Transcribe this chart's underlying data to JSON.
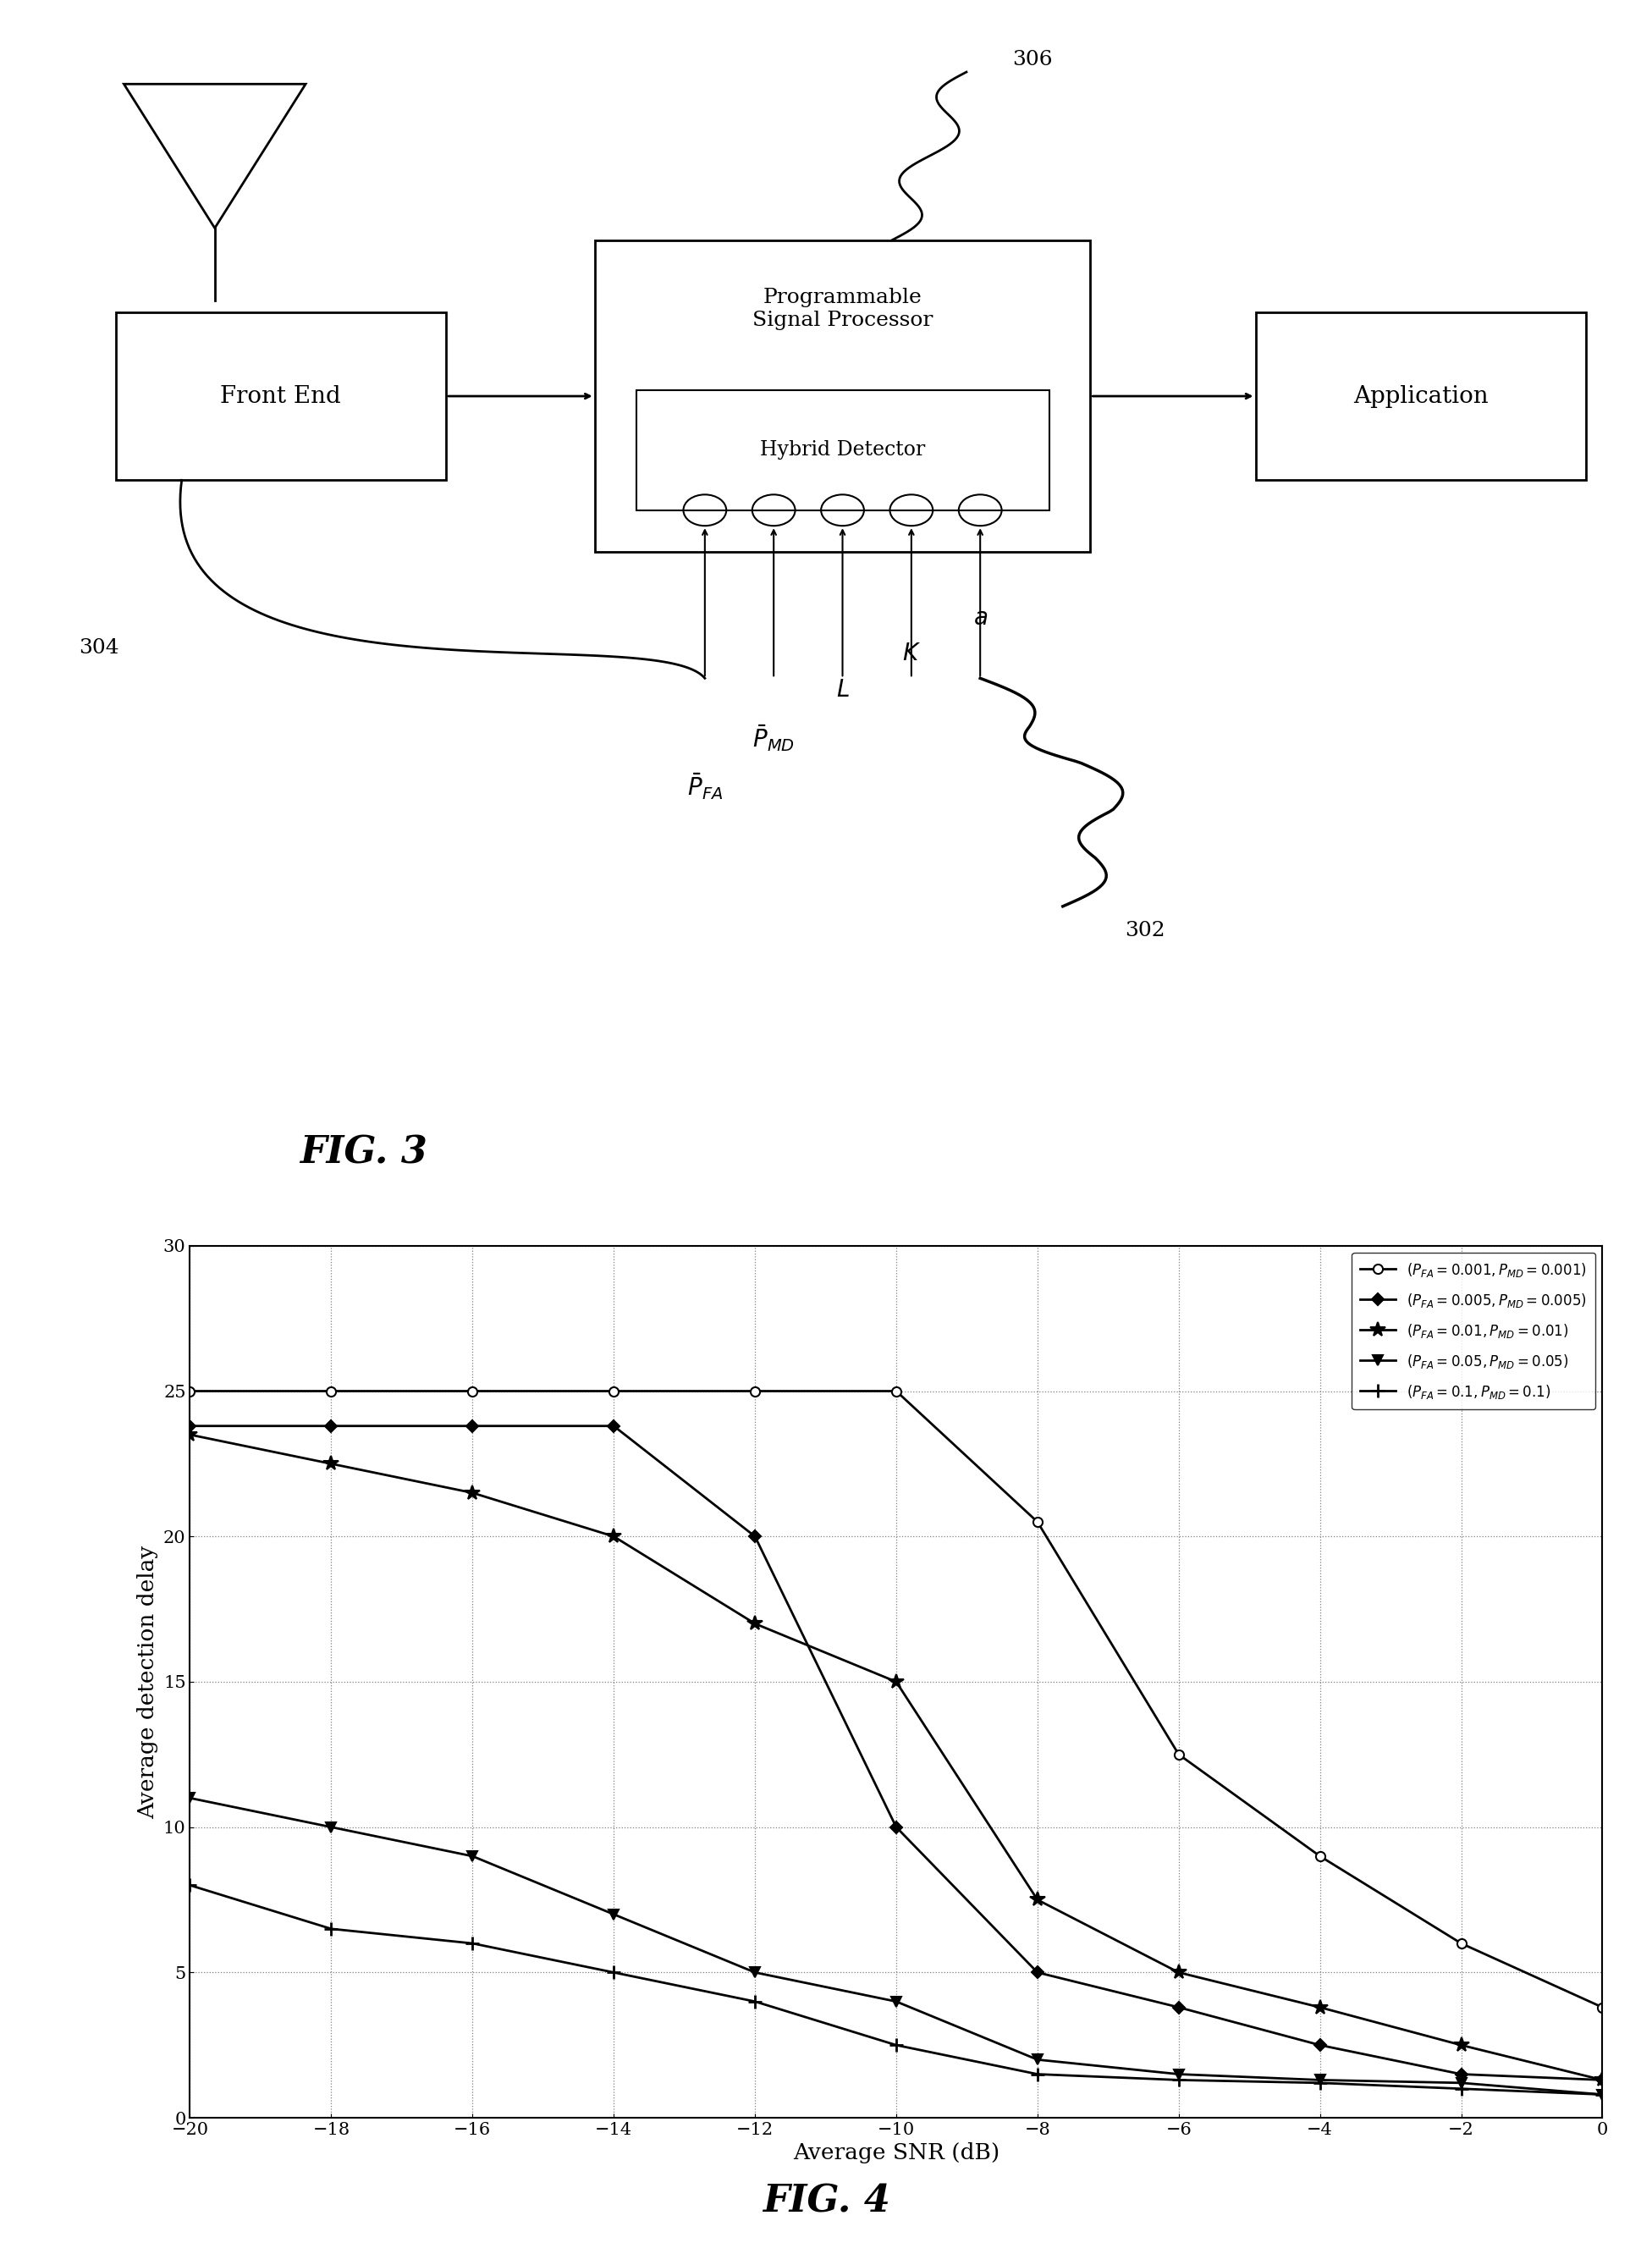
{
  "fig3": {
    "title": "FIG. 3",
    "front_end": {
      "label": "Front End"
    },
    "psp_label": "Programmable\nSignal Processor",
    "application": {
      "label": "Application"
    },
    "hybrid": {
      "label": "Hybrid Detector"
    },
    "ref_304": "304",
    "ref_302": "302",
    "ref_306": "306"
  },
  "fig4": {
    "title": "FIG. 4",
    "xlabel": "Average SNR (dB)",
    "ylabel": "Average detection delay",
    "xlim": [
      -20,
      0
    ],
    "ylim": [
      0,
      30
    ],
    "xticks": [
      -20,
      -18,
      -16,
      -14,
      -12,
      -10,
      -8,
      -6,
      -4,
      -2,
      0
    ],
    "yticks": [
      0,
      5,
      10,
      15,
      20,
      25,
      30
    ],
    "series": [
      {
        "marker": "o",
        "x": [
          -20,
          -18,
          -16,
          -14,
          -12,
          -10,
          -8,
          -6,
          -4,
          -2,
          0
        ],
        "y": [
          25.0,
          25.0,
          25.0,
          25.0,
          25.0,
          25.0,
          20.5,
          12.5,
          9.0,
          6.0,
          3.8
        ],
        "open_marker": true
      },
      {
        "marker": "D",
        "x": [
          -20,
          -18,
          -16,
          -14,
          -12,
          -10,
          -8,
          -6,
          -4,
          -2,
          0
        ],
        "y": [
          23.8,
          23.8,
          23.8,
          23.8,
          20.0,
          10.0,
          5.0,
          3.8,
          2.5,
          1.5,
          1.3
        ],
        "open_marker": false
      },
      {
        "marker": "*",
        "x": [
          -20,
          -18,
          -16,
          -14,
          -12,
          -10,
          -8,
          -6,
          -4,
          -2,
          0
        ],
        "y": [
          23.5,
          22.5,
          21.5,
          20.0,
          17.0,
          15.0,
          7.5,
          5.0,
          3.8,
          2.5,
          1.3
        ],
        "open_marker": false
      },
      {
        "marker": "v",
        "x": [
          -20,
          -18,
          -16,
          -14,
          -12,
          -10,
          -8,
          -6,
          -4,
          -2,
          0
        ],
        "y": [
          11.0,
          10.0,
          9.0,
          7.0,
          5.0,
          4.0,
          2.0,
          1.5,
          1.3,
          1.2,
          0.8
        ],
        "open_marker": false
      },
      {
        "marker": "+",
        "x": [
          -20,
          -18,
          -16,
          -14,
          -12,
          -10,
          -8,
          -6,
          -4,
          -2,
          0
        ],
        "y": [
          8.0,
          6.5,
          6.0,
          5.0,
          4.0,
          2.5,
          1.5,
          1.3,
          1.2,
          1.0,
          0.8
        ],
        "open_marker": false
      }
    ]
  }
}
